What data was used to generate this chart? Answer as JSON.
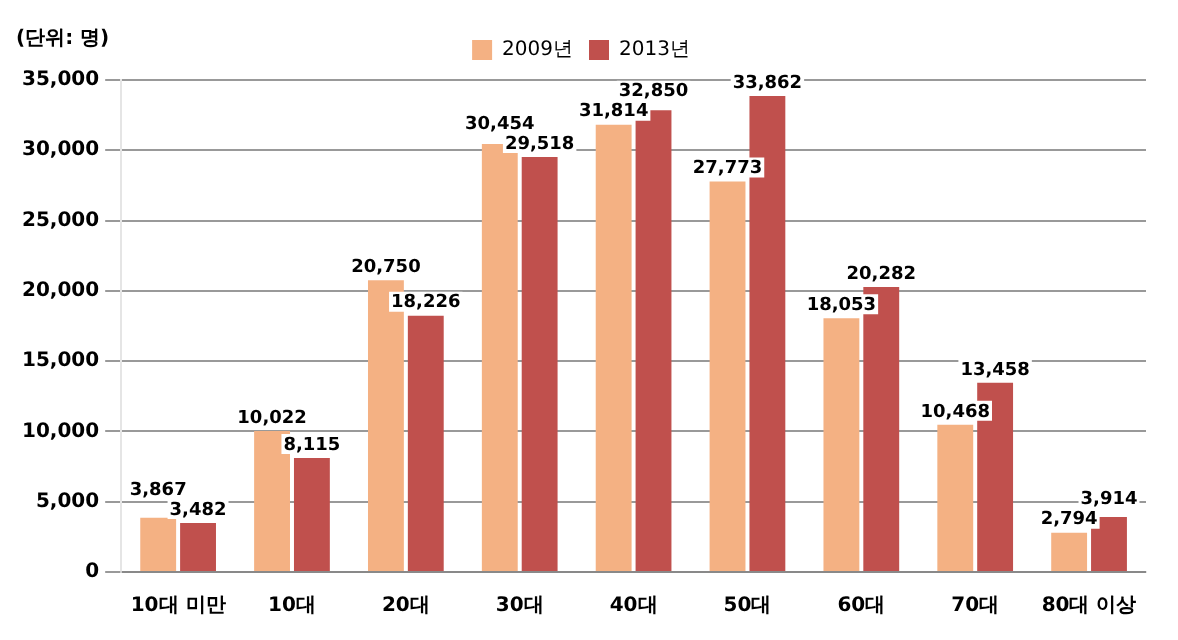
{
  "chart_data": {
    "type": "bar",
    "annotations": [
      "(단위: 명)"
    ],
    "categories": [
      "10대 미만",
      "10대",
      "20대",
      "30대",
      "40대",
      "50대",
      "60대",
      "70대",
      "80대 이상"
    ],
    "series": [
      {
        "name": "2009년",
        "color": "#f4b183",
        "values": [
          3867,
          10022,
          20750,
          30454,
          31814,
          27773,
          18053,
          10468,
          2794
        ],
        "value_labels": [
          "3,867",
          "10,022",
          "20,750",
          "30,454",
          "31,814",
          "27,773",
          "18,053",
          "10,468",
          "2,794"
        ]
      },
      {
        "name": "2013년",
        "color": "#c0504d",
        "values": [
          3482,
          8115,
          18226,
          29518,
          32850,
          33862,
          20282,
          13458,
          3914
        ],
        "value_labels": [
          "3,482",
          "8,115",
          "18,226",
          "29,518",
          "32,850",
          "33,862",
          "20,282",
          "13,458",
          "3,914"
        ]
      }
    ],
    "ylim": [
      0,
      35000
    ],
    "yticks": [
      0,
      {
        "value": 5000,
        "label": "5,000"
      },
      {
        "value": 10000,
        "label": "10,000"
      },
      {
        "value": 15000,
        "label": "15,000"
      },
      {
        "value": 20000,
        "label": "20,000"
      },
      {
        "value": 25000,
        "label": "25,000"
      },
      {
        "value": 30000,
        "label": "30,000"
      },
      {
        "value": 35000,
        "label": "35,000"
      }
    ],
    "grid": "y",
    "legend": "top left"
  }
}
